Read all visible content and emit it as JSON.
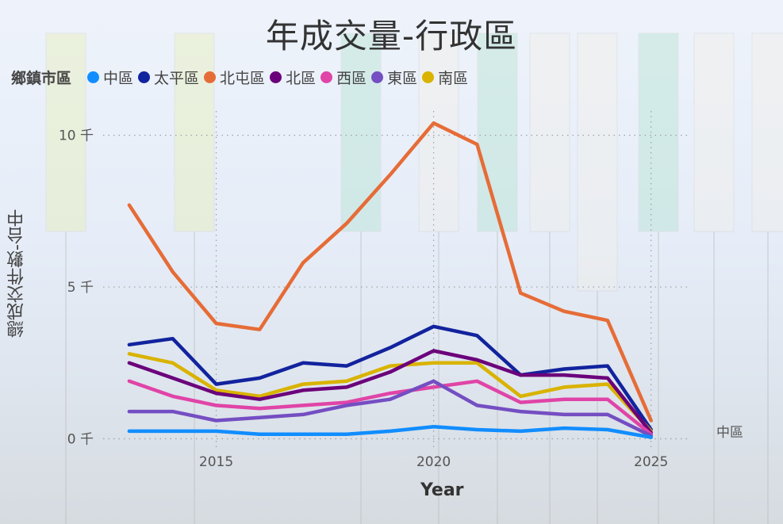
{
  "title": "年成交量-行政區",
  "legend": {
    "title": "鄉鎮市區",
    "items": [
      {
        "name": "中區",
        "color": "#118dff"
      },
      {
        "name": "太平區",
        "color": "#12239e"
      },
      {
        "name": "北屯區",
        "color": "#e66c37"
      },
      {
        "name": "北區",
        "color": "#6b007b"
      },
      {
        "name": "西區",
        "color": "#e044a7"
      },
      {
        "name": "東區",
        "color": "#744ec2"
      },
      {
        "name": "南區",
        "color": "#d9b300"
      }
    ]
  },
  "end_label": "中區",
  "chart_data": {
    "type": "line",
    "title": "年成交量-行政區",
    "xlabel": "Year",
    "ylabel": "總成交件數-台中",
    "x": [
      2013,
      2014,
      2015,
      2016,
      2017,
      2018,
      2019,
      2020,
      2021,
      2022,
      2023,
      2024,
      2025
    ],
    "xlim": [
      2012.4,
      2025.9
    ],
    "ylim": [
      -300,
      10800
    ],
    "xticks": [
      {
        "value": 2015,
        "label": "2015"
      },
      {
        "value": 2020,
        "label": "2020"
      },
      {
        "value": 2025,
        "label": "2025"
      }
    ],
    "yticks": [
      {
        "value": 0,
        "label": "0 千"
      },
      {
        "value": 5000,
        "label": "5 千"
      },
      {
        "value": 10000,
        "label": "10 千"
      }
    ],
    "grid": true,
    "legend_position": "top-left",
    "series": [
      {
        "name": "北屯區",
        "color": "#e66c37",
        "values": [
          7700,
          5500,
          3800,
          3600,
          5800,
          7100,
          8700,
          10400,
          9700,
          4800,
          4200,
          3900,
          600
        ]
      },
      {
        "name": "太平區",
        "color": "#12239e",
        "values": [
          3100,
          3300,
          1800,
          2000,
          2500,
          2400,
          3000,
          3700,
          3400,
          2100,
          2300,
          2400,
          300
        ]
      },
      {
        "name": "南區",
        "color": "#d9b300",
        "values": [
          2800,
          2500,
          1600,
          1400,
          1800,
          1900,
          2400,
          2500,
          2500,
          1400,
          1700,
          1800,
          250
        ]
      },
      {
        "name": "北區",
        "color": "#6b007b",
        "values": [
          2500,
          2000,
          1500,
          1300,
          1600,
          1700,
          2200,
          2900,
          2600,
          2100,
          2100,
          2000,
          200
        ]
      },
      {
        "name": "西區",
        "color": "#e044a7",
        "values": [
          1900,
          1400,
          1100,
          1000,
          1100,
          1200,
          1500,
          1700,
          1900,
          1200,
          1300,
          1300,
          150
        ]
      },
      {
        "name": "東區",
        "color": "#744ec2",
        "values": [
          900,
          900,
          600,
          700,
          800,
          1100,
          1300,
          1900,
          1100,
          900,
          800,
          800,
          100
        ]
      },
      {
        "name": "中區",
        "color": "#118dff",
        "values": [
          250,
          250,
          250,
          150,
          150,
          150,
          250,
          400,
          300,
          250,
          350,
          300,
          50
        ]
      }
    ]
  }
}
